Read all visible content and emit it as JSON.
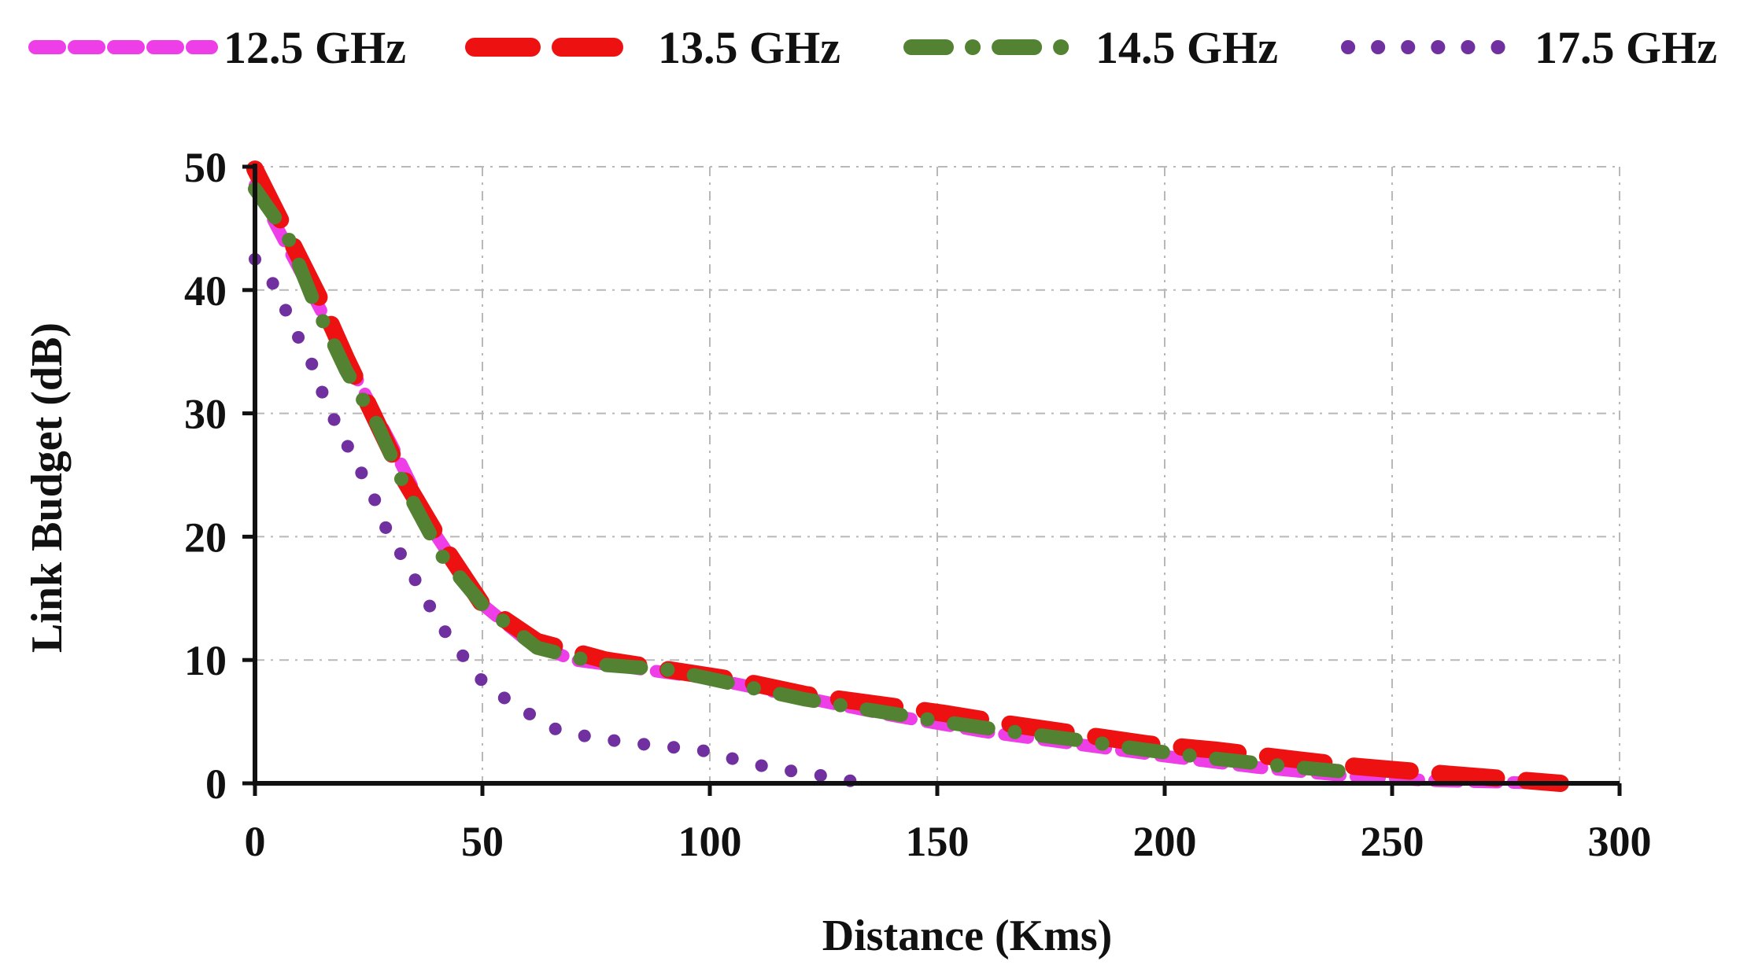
{
  "chart_data": {
    "type": "line",
    "title": "",
    "xlabel": "Distance (Kms)",
    "ylabel": "Link Budget (dB)",
    "xlim": [
      0,
      300
    ],
    "ylim": [
      0,
      50
    ],
    "xticks": [
      0,
      50,
      100,
      150,
      200,
      250,
      300
    ],
    "yticks": [
      0,
      10,
      20,
      30,
      40,
      50
    ],
    "grid": true,
    "legend_position": "top",
    "series": [
      {
        "name": "12.5 GHz",
        "color": "#ee3ee8",
        "style": "dash",
        "x": [
          0,
          10,
          20,
          30,
          40,
          50,
          60,
          70,
          80,
          90,
          100,
          120,
          140,
          160,
          180,
          200,
          220,
          240,
          260,
          285
        ],
        "y": [
          48.5,
          41.5,
          34.5,
          27.5,
          20,
          14.5,
          11.5,
          10,
          9.5,
          9,
          8.5,
          7,
          5.5,
          4.2,
          3.2,
          2.2,
          1.3,
          0.6,
          0.2,
          0
        ]
      },
      {
        "name": "13.5 GHz",
        "color": "#ee1111",
        "style": "long-dash",
        "x": [
          0,
          14,
          20,
          33,
          41,
          50,
          62,
          77,
          107,
          121,
          151,
          166,
          196,
          211,
          241,
          257,
          287
        ],
        "y": [
          49.8,
          39.5,
          34.5,
          24.5,
          19.5,
          14.5,
          11.5,
          10,
          8.3,
          7.2,
          5.7,
          4.8,
          3.2,
          2.7,
          1.4,
          0.9,
          0
        ]
      },
      {
        "name": "14.5 GHz",
        "color": "#538232",
        "style": "dash-dot",
        "x": [
          0,
          7,
          13,
          20,
          27,
          33,
          41,
          50,
          62,
          77,
          91,
          106,
          121,
          136,
          151,
          166,
          181,
          196,
          211,
          226,
          241
        ],
        "y": [
          48.2,
          44.5,
          39,
          33.5,
          29,
          24,
          18.5,
          14.5,
          11,
          9.6,
          9.2,
          8,
          6.8,
          5.9,
          5,
          4.2,
          3.5,
          2.7,
          2,
          1.4,
          0.9
        ]
      },
      {
        "name": "17.5 GHz",
        "color": "#7030a0",
        "style": "dot",
        "x": [
          0,
          5,
          8,
          12,
          15,
          18,
          22,
          26,
          29,
          33,
          37,
          41,
          46,
          51,
          58,
          65,
          73,
          82,
          90,
          98,
          106,
          114,
          122,
          131
        ],
        "y": [
          42.5,
          40,
          37.2,
          34.5,
          31.5,
          29,
          26.2,
          23.3,
          20.5,
          18,
          15.3,
          12.7,
          10.2,
          7.8,
          6.2,
          4.5,
          3.8,
          3.3,
          3,
          2.7,
          1.9,
          1.2,
          0.8,
          0.2
        ]
      }
    ]
  }
}
